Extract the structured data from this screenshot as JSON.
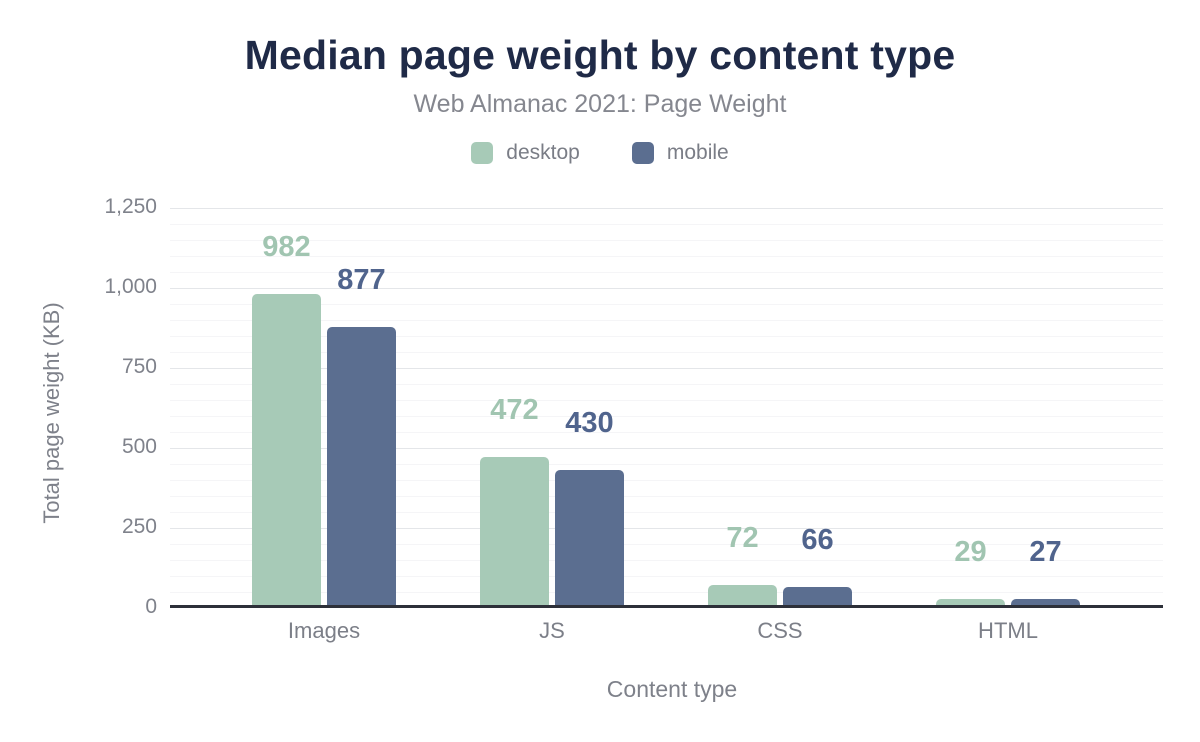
{
  "header": {
    "title": "Median page weight by content type",
    "subtitle": "Web Almanac 2021: Page Weight"
  },
  "chart_data": {
    "type": "bar",
    "title": "Median page weight by content type",
    "subtitle": "Web Almanac 2021: Page Weight",
    "categories": [
      "Images",
      "JS",
      "CSS",
      "HTML"
    ],
    "series": [
      {
        "name": "desktop",
        "color": "#a7cab7",
        "label_color": "#a1c5b1",
        "values": [
          982,
          472,
          72,
          29
        ]
      },
      {
        "name": "mobile",
        "color": "#5b6e90",
        "label_color": "#50648d",
        "values": [
          877,
          430,
          66,
          27
        ]
      }
    ],
    "xlabel": "Content type",
    "ylabel": "Total page weight (KB)",
    "ylim": [
      0,
      1250
    ],
    "yticks": [
      {
        "value": 0,
        "label": "0"
      },
      {
        "value": 250,
        "label": "250"
      },
      {
        "value": 500,
        "label": "500"
      },
      {
        "value": 750,
        "label": "750"
      },
      {
        "value": 1000,
        "label": "1,000"
      },
      {
        "value": 1250,
        "label": "1,250"
      }
    ],
    "minor_tick_step": 50,
    "grid": "on",
    "legend_position": "top",
    "colors": {
      "title": "#1f2a47",
      "subtitle_text": "#85878f",
      "axis_text": "#7e818a",
      "baseline": "#2d3039",
      "gridline_major": "#e4e6e9",
      "gridline_minor": "#f5f5f7"
    }
  }
}
